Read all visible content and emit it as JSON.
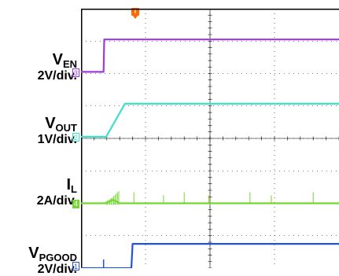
{
  "channels": [
    {
      "id": "ven",
      "name": "V",
      "sub": "EN",
      "scale": "2V/div.",
      "marker": "3",
      "color": "#9b3be0"
    },
    {
      "id": "vout",
      "name": "V",
      "sub": "OUT",
      "scale": "1V/div.",
      "marker": "2",
      "color": "#3fe0c8"
    },
    {
      "id": "il",
      "name": "I",
      "sub": "L",
      "scale": "2A/div.",
      "marker": "4",
      "color": "#74d630"
    },
    {
      "id": "vpgood",
      "name": "V",
      "sub": "PGOOD",
      "scale": "2V/div.",
      "marker": "1",
      "color": "#2451e0"
    }
  ],
  "trigger": {
    "label": "T",
    "color": "#ff6a00"
  },
  "chart_data": {
    "type": "line",
    "grid": true,
    "x_divisions": 10,
    "y_divisions": 8,
    "series": [
      {
        "name": "VEN",
        "x": [
          0,
          0.35,
          0.36,
          5
        ],
        "y": [
          6.05,
          6.05,
          7.05,
          7.05
        ]
      },
      {
        "name": "VOUT",
        "x": [
          0,
          0.39,
          0.68,
          5
        ],
        "y": [
          4.05,
          4.05,
          5.07,
          5.07
        ]
      },
      {
        "name": "IL",
        "x": [
          0,
          0.39,
          0.48,
          0.5,
          0.6,
          5
        ],
        "y": [
          2.0,
          2.0,
          2.1,
          2.1,
          2.0,
          2.0
        ]
      },
      {
        "name": "VPGOOD",
        "x": [
          0,
          0.78,
          0.8,
          5
        ],
        "y": [
          0.0,
          0.0,
          0.75,
          0.75
        ]
      }
    ]
  }
}
